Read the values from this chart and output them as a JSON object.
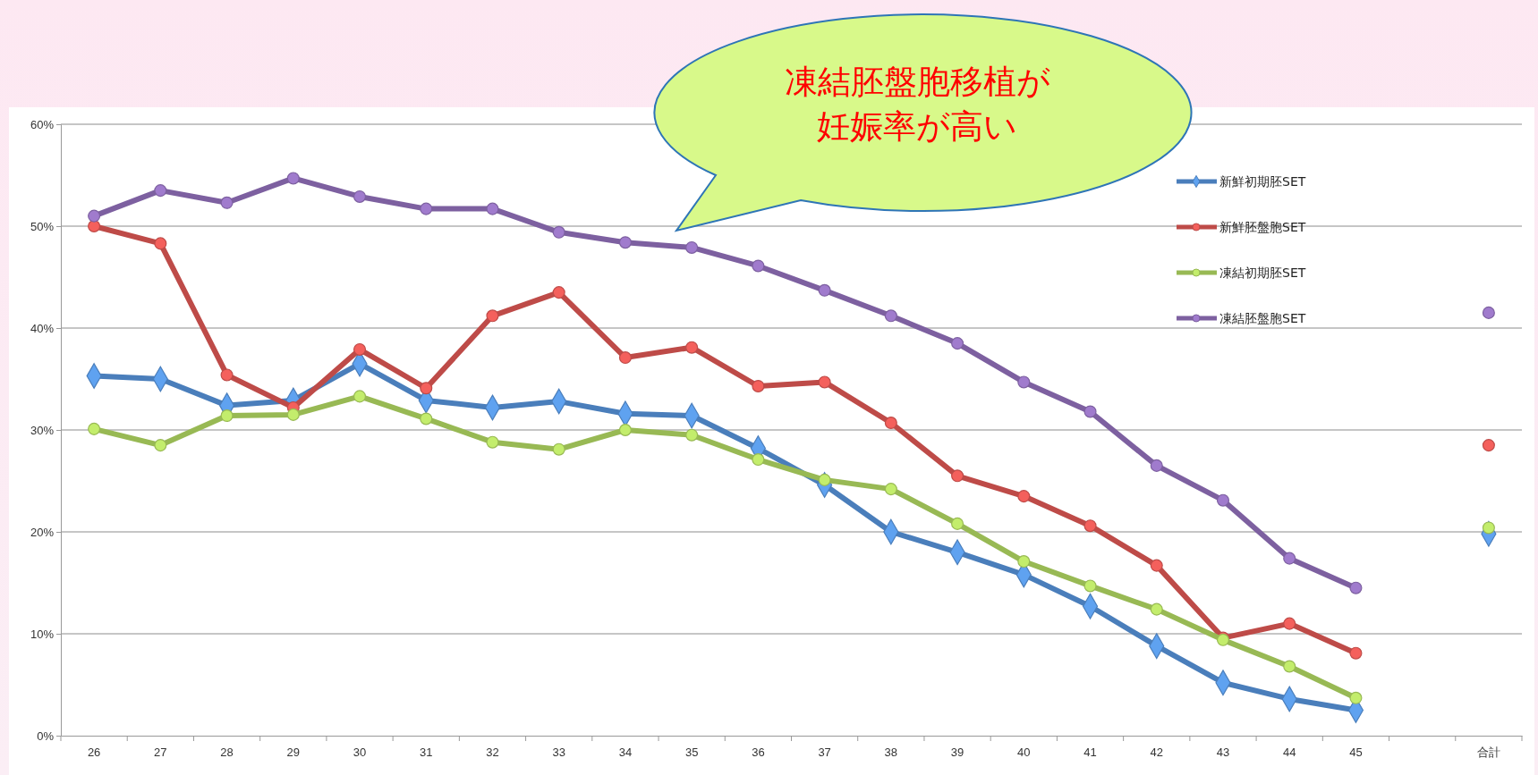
{
  "chart_data": {
    "type": "line",
    "categories": [
      "26",
      "27",
      "28",
      "29",
      "30",
      "31",
      "32",
      "33",
      "34",
      "35",
      "36",
      "37",
      "38",
      "39",
      "40",
      "41",
      "42",
      "43",
      "44",
      "45",
      null,
      "合計"
    ],
    "series": [
      {
        "name": "新鮮初期胚SET",
        "color": "#4a7ebb",
        "marker": "diamond",
        "values": [
          35.3,
          35.0,
          32.4,
          32.9,
          36.5,
          32.9,
          32.2,
          32.8,
          31.6,
          31.4,
          28.2,
          24.6,
          20.0,
          18.0,
          15.8,
          12.7,
          8.8,
          5.2,
          3.6,
          2.5,
          null,
          19.8
        ]
      },
      {
        "name": "新鮮胚盤胞SET",
        "color": "#be4b48",
        "marker": "circle",
        "values": [
          50.0,
          48.3,
          35.4,
          32.2,
          37.9,
          34.1,
          41.2,
          43.5,
          37.1,
          38.1,
          34.3,
          34.7,
          30.7,
          25.5,
          23.5,
          20.6,
          16.7,
          9.6,
          11.0,
          8.1,
          null,
          28.5
        ]
      },
      {
        "name": "凍結初期胚SET",
        "color": "#98b954",
        "marker": "circle",
        "values": [
          30.1,
          28.5,
          31.4,
          31.5,
          33.3,
          31.1,
          28.8,
          28.1,
          30.0,
          29.5,
          27.1,
          25.1,
          24.2,
          20.8,
          17.1,
          14.7,
          12.4,
          9.4,
          6.8,
          3.7,
          null,
          20.4
        ]
      },
      {
        "name": "凍結胚盤胞SET",
        "color": "#7d60a0",
        "marker": "circle",
        "values": [
          51.0,
          53.5,
          52.3,
          54.7,
          52.9,
          51.7,
          51.7,
          49.4,
          48.4,
          47.9,
          46.1,
          43.7,
          41.2,
          38.5,
          34.7,
          31.8,
          26.5,
          23.1,
          17.4,
          14.5,
          null,
          41.5
        ]
      }
    ],
    "ylim": [
      0,
      60
    ],
    "yticks": [
      {
        "value": 0,
        "label": "0%"
      },
      {
        "value": 10,
        "label": "10%"
      },
      {
        "value": 20,
        "label": "20%"
      },
      {
        "value": 30,
        "label": "30%"
      },
      {
        "value": 40,
        "label": "40%"
      },
      {
        "value": 50,
        "label": "50%"
      },
      {
        "value": 60,
        "label": "60%"
      }
    ],
    "grid": "y",
    "legend": "top right",
    "line_style": "solid",
    "annotations": [
      "凍結胚盤胞移植が妊娠率が高い"
    ]
  }
}
